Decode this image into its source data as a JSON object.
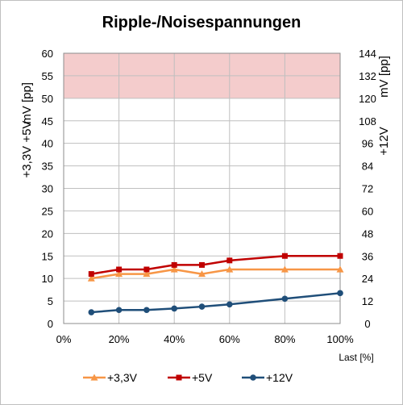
{
  "chart_data": {
    "type": "line",
    "title": "Ripple-/Noisespannungen",
    "xlabel": "Last [%]",
    "ylabel_left_top": "mV [pp]",
    "ylabel_left_bottom": "+3,3V +5V",
    "ylabel_right_top": "mV [pp]",
    "ylabel_right_bottom": "+12V",
    "xlim": [
      0,
      100
    ],
    "x_ticks": [
      "0%",
      "20%",
      "40%",
      "60%",
      "80%",
      "100%"
    ],
    "x_tick_values": [
      0,
      20,
      40,
      60,
      80,
      100
    ],
    "ylim_left": [
      0,
      60
    ],
    "y_ticks_left": [
      "0",
      "5",
      "10",
      "15",
      "20",
      "25",
      "30",
      "35",
      "40",
      "45",
      "50",
      "55",
      "60"
    ],
    "y_tick_values_left": [
      0,
      5,
      10,
      15,
      20,
      25,
      30,
      35,
      40,
      45,
      50,
      55,
      60
    ],
    "ylim_right": [
      0,
      144
    ],
    "y_ticks_right": [
      "0",
      "12",
      "24",
      "36",
      "48",
      "60",
      "72",
      "84",
      "96",
      "108",
      "120",
      "132",
      "144"
    ],
    "y_tick_values_right": [
      0,
      12,
      24,
      36,
      48,
      60,
      72,
      84,
      96,
      108,
      120,
      132,
      144
    ],
    "limit_band_left": [
      50,
      60
    ],
    "grid": true,
    "legend_position": "bottom",
    "x": [
      10,
      20,
      30,
      40,
      50,
      60,
      80,
      100
    ],
    "series": [
      {
        "name": "+3,3V",
        "axis": "left",
        "color": "#f79646",
        "marker": "triangle",
        "values": [
          10,
          11,
          11,
          12,
          11,
          12,
          12,
          12
        ]
      },
      {
        "name": "+5V",
        "axis": "left",
        "color": "#c00000",
        "marker": "square",
        "values": [
          11,
          12,
          12,
          13,
          13,
          14,
          15,
          15
        ]
      },
      {
        "name": "+12V",
        "axis": "right",
        "color": "#1f4e79",
        "marker": "circle",
        "values": [
          6,
          7.2,
          7.2,
          8,
          9,
          10.2,
          13.2,
          16.2
        ]
      }
    ],
    "colors": {
      "limit_band": "#f4cccc",
      "grid": "#bfbfbf"
    }
  }
}
